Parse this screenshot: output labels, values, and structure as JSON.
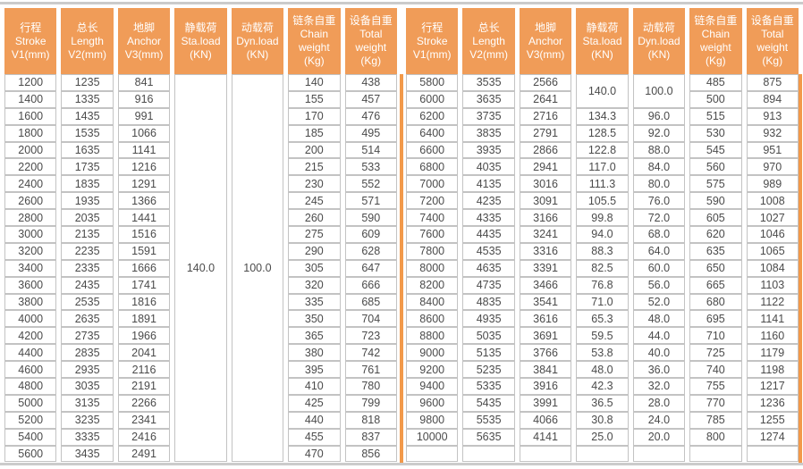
{
  "colors": {
    "header_bg": "#F09C58",
    "header_text": "#FFFFFF",
    "cell_border": "#C3C3C3",
    "cell_text": "#4B4B4B",
    "divider_orange": "#F2994A",
    "rule_gray": "#CBCBCB",
    "background": "#FFFFFF"
  },
  "headers": [
    {
      "lines": [
        "行程",
        "Stroke",
        "V1(mm)"
      ]
    },
    {
      "lines": [
        "总长",
        "Length",
        "V2(mm)"
      ]
    },
    {
      "lines": [
        "地脚",
        "Anchor",
        "V3(mm)"
      ]
    },
    {
      "lines": [
        "静载荷",
        "Sta.load",
        "(KN)"
      ]
    },
    {
      "lines": [
        "动载荷",
        "Dyn.load",
        "(KN)"
      ]
    },
    {
      "lines": [
        "链条自重",
        "Chain",
        "weight",
        "(Kg)"
      ]
    },
    {
      "lines": [
        "设备自重",
        "Total",
        "weight",
        "(Kg)"
      ]
    }
  ],
  "tables": [
    {
      "id": "left-table",
      "merges": [
        {
          "row": 0,
          "col": 3,
          "rowspan": 23,
          "value": "140.0"
        },
        {
          "row": 0,
          "col": 4,
          "rowspan": 23,
          "value": "100.0"
        }
      ],
      "rows": [
        [
          "1200",
          "1235",
          "841",
          null,
          null,
          "140",
          "438"
        ],
        [
          "1400",
          "1335",
          "916",
          null,
          null,
          "155",
          "457"
        ],
        [
          "1600",
          "1435",
          "991",
          null,
          null,
          "170",
          "476"
        ],
        [
          "1800",
          "1535",
          "1066",
          null,
          null,
          "185",
          "495"
        ],
        [
          "2000",
          "1635",
          "1141",
          null,
          null,
          "200",
          "514"
        ],
        [
          "2200",
          "1735",
          "1216",
          null,
          null,
          "215",
          "533"
        ],
        [
          "2400",
          "1835",
          "1291",
          null,
          null,
          "230",
          "552"
        ],
        [
          "2600",
          "1935",
          "1366",
          null,
          null,
          "245",
          "571"
        ],
        [
          "2800",
          "2035",
          "1441",
          null,
          null,
          "260",
          "590"
        ],
        [
          "3000",
          "2135",
          "1516",
          null,
          null,
          "275",
          "609"
        ],
        [
          "3200",
          "2235",
          "1591",
          null,
          null,
          "290",
          "628"
        ],
        [
          "3400",
          "2335",
          "1666",
          null,
          null,
          "305",
          "647"
        ],
        [
          "3600",
          "2435",
          "1741",
          null,
          null,
          "320",
          "666"
        ],
        [
          "3800",
          "2535",
          "1816",
          null,
          null,
          "335",
          "685"
        ],
        [
          "4000",
          "2635",
          "1891",
          null,
          null,
          "350",
          "704"
        ],
        [
          "4200",
          "2735",
          "1966",
          null,
          null,
          "365",
          "723"
        ],
        [
          "4400",
          "2835",
          "2041",
          null,
          null,
          "380",
          "742"
        ],
        [
          "4600",
          "2935",
          "2116",
          null,
          null,
          "395",
          "761"
        ],
        [
          "4800",
          "3035",
          "2191",
          null,
          null,
          "410",
          "780"
        ],
        [
          "5000",
          "3135",
          "2266",
          null,
          null,
          "425",
          "799"
        ],
        [
          "5200",
          "3235",
          "2341",
          null,
          null,
          "440",
          "818"
        ],
        [
          "5400",
          "3335",
          "2416",
          null,
          null,
          "455",
          "837"
        ],
        [
          "5600",
          "3435",
          "2491",
          null,
          null,
          "470",
          "856"
        ]
      ]
    },
    {
      "id": "right-table",
      "merges": [
        {
          "row": 0,
          "col": 3,
          "rowspan": 2,
          "value": "140.0"
        },
        {
          "row": 0,
          "col": 4,
          "rowspan": 2,
          "value": "100.0"
        }
      ],
      "rows": [
        [
          "5800",
          "3535",
          "2566",
          null,
          null,
          "485",
          "875"
        ],
        [
          "6000",
          "3635",
          "2641",
          null,
          null,
          "500",
          "894"
        ],
        [
          "6200",
          "3735",
          "2716",
          "134.3",
          "96.0",
          "515",
          "913"
        ],
        [
          "6400",
          "3835",
          "2791",
          "128.5",
          "92.0",
          "530",
          "932"
        ],
        [
          "6600",
          "3935",
          "2866",
          "122.8",
          "88.0",
          "545",
          "951"
        ],
        [
          "6800",
          "4035",
          "2941",
          "117.0",
          "84.0",
          "560",
          "970"
        ],
        [
          "7000",
          "4135",
          "3016",
          "111.3",
          "80.0",
          "575",
          "989"
        ],
        [
          "7200",
          "4235",
          "3091",
          "105.5",
          "76.0",
          "590",
          "1008"
        ],
        [
          "7400",
          "4335",
          "3166",
          "99.8",
          "72.0",
          "605",
          "1027"
        ],
        [
          "7600",
          "4435",
          "3241",
          "94.0",
          "68.0",
          "620",
          "1046"
        ],
        [
          "7800",
          "4535",
          "3316",
          "88.3",
          "64.0",
          "635",
          "1065"
        ],
        [
          "8000",
          "4635",
          "3391",
          "82.5",
          "60.0",
          "650",
          "1084"
        ],
        [
          "8200",
          "4735",
          "3466",
          "76.8",
          "56.0",
          "665",
          "1103"
        ],
        [
          "8400",
          "4835",
          "3541",
          "71.0",
          "52.0",
          "680",
          "1122"
        ],
        [
          "8600",
          "4935",
          "3616",
          "65.3",
          "48.0",
          "695",
          "1141"
        ],
        [
          "8800",
          "5035",
          "3691",
          "59.5",
          "44.0",
          "710",
          "1160"
        ],
        [
          "9000",
          "5135",
          "3766",
          "53.8",
          "40.0",
          "725",
          "1179"
        ],
        [
          "9200",
          "5235",
          "3841",
          "48.0",
          "36.0",
          "740",
          "1198"
        ],
        [
          "9400",
          "5335",
          "3916",
          "42.3",
          "32.0",
          "755",
          "1217"
        ],
        [
          "9600",
          "5435",
          "3991",
          "36.5",
          "28.0",
          "770",
          "1236"
        ],
        [
          "9800",
          "5535",
          "4066",
          "30.8",
          "24.0",
          "785",
          "1255"
        ],
        [
          "10000",
          "5635",
          "4141",
          "25.0",
          "20.0",
          "800",
          "1274"
        ],
        [
          "",
          "",
          "",
          "",
          "",
          "",
          ""
        ]
      ]
    }
  ]
}
